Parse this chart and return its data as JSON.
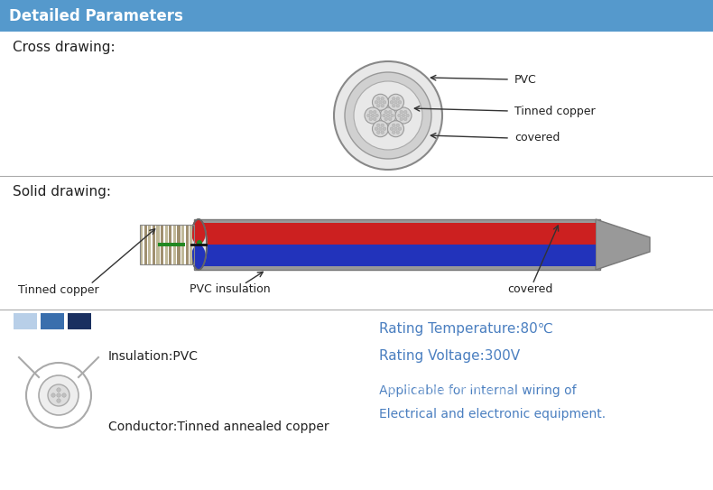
{
  "title": "Detailed Parameters",
  "title_bg": "#5599cc",
  "title_color": "#ffffff",
  "bg_color": "#ffffff",
  "cross_drawing_label": "Cross drawing:",
  "solid_drawing_label": "Solid drawing:",
  "pvc_label": "PVC",
  "tinned_copper_label": "Tinned copper",
  "covered_label": "covered",
  "tinned_copper_bottom": "Tinned copper",
  "pvc_insulation_label": "PVC insulation",
  "covered_bottom": "covered",
  "rating_temp": "Rating Temperature:80℃",
  "rating_volt": "Rating Voltage:300V",
  "applicable": "Applicable for internal wiring of",
  "electrical": "Electrical and electronic equipment.",
  "insulation": "Insulation:PVC",
  "conductor": "Conductor:Tinned annealed copper",
  "info_color": "#4a7fc0",
  "text_color": "#222222",
  "swatch_colors": [
    "#b8cfe8",
    "#3a6fad",
    "#1a3060"
  ],
  "divider_color": "#aaaaaa",
  "cable_gray": "#999999",
  "cable_edge": "#777777",
  "wire_red": "#cc2020",
  "wire_blue": "#2233bb",
  "wire_black": "#111111",
  "wire_green": "#228822",
  "strand_color1": "#c0b898",
  "strand_color2": "#a09070",
  "cross_outer_color": "#dddddd",
  "cross_inner_color": "#cccccc",
  "cross_conductor_color": "#c8c8c8",
  "arrow_color": "#333333"
}
